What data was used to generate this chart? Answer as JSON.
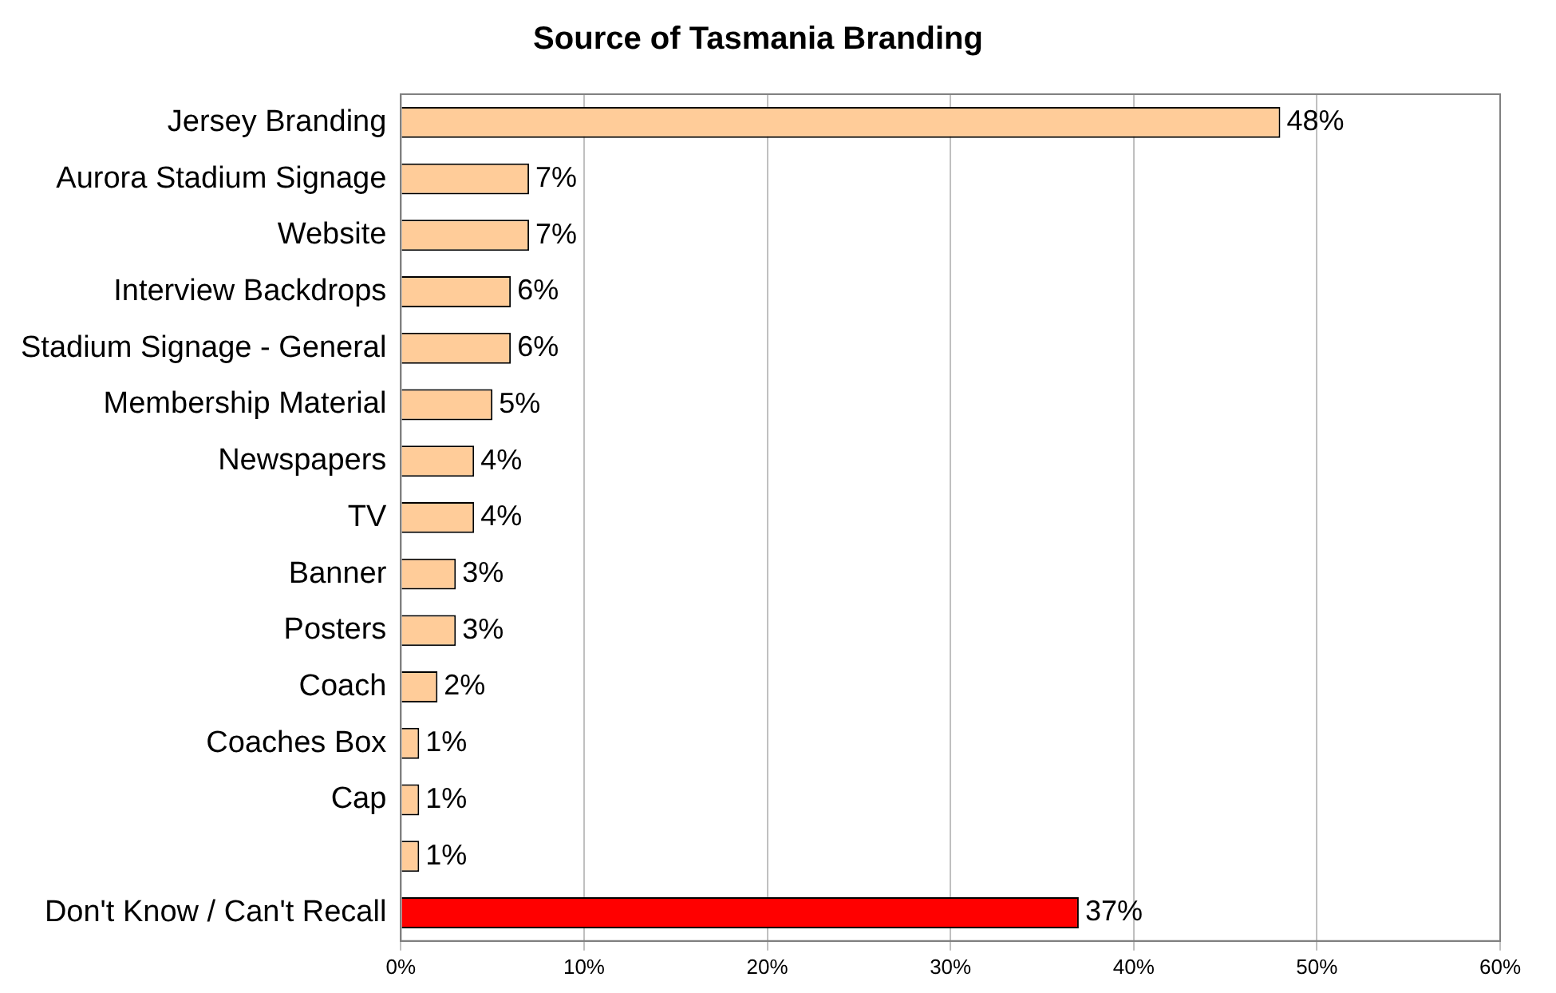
{
  "chart_data": {
    "type": "bar",
    "orientation": "horizontal",
    "title": "Source of Tasmania Branding",
    "categories": [
      "Jersey Branding",
      "Aurora Stadium Signage",
      "Website",
      "Interview Backdrops",
      "Stadium Signage - General",
      "Membership Material",
      "Newspapers",
      "TV",
      "Banner",
      "Posters",
      "Coach",
      "Coaches Box",
      "Cap",
      null,
      "Don't Know / Can't Recall"
    ],
    "values": [
      48,
      7,
      7,
      6,
      6,
      5,
      4,
      4,
      3,
      3,
      2,
      1,
      1,
      1,
      37
    ],
    "colors": [
      "#ffcc99",
      "#ffcc99",
      "#ffcc99",
      "#ffcc99",
      "#ffcc99",
      "#ffcc99",
      "#ffcc99",
      "#ffcc99",
      "#ffcc99",
      "#ffcc99",
      "#ffcc99",
      "#ffcc99",
      "#ffcc99",
      "#ffcc99",
      "#ff0000"
    ],
    "value_labels": [
      "48%",
      "7%",
      "7%",
      "6%",
      "6%",
      "5%",
      "4%",
      "4%",
      "3%",
      "3%",
      "2%",
      "1%",
      "1%",
      "1%",
      "37%"
    ],
    "xlim": [
      0,
      60
    ],
    "xticks": [
      {
        "value": 0,
        "label": "0%"
      },
      {
        "value": 10,
        "label": "10%"
      },
      {
        "value": 20,
        "label": "20%"
      },
      {
        "value": 30,
        "label": "30%"
      },
      {
        "value": 40,
        "label": "40%"
      },
      {
        "value": 50,
        "label": "50%"
      },
      {
        "value": 60,
        "label": "60%"
      }
    ],
    "grid": "x",
    "legend": false
  }
}
